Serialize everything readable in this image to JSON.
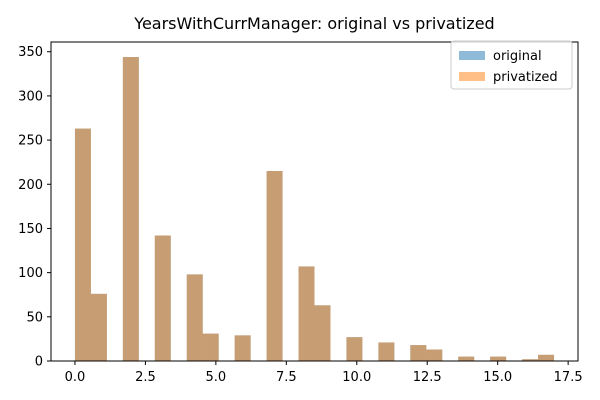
{
  "chart_data": {
    "type": "bar",
    "title": "YearsWithCurrManager: original vs privatized",
    "xlabel": "",
    "ylabel": "",
    "xlim": [
      -0.85,
      17.85
    ],
    "ylim": [
      0,
      361
    ],
    "xticks": [
      0.0,
      2.5,
      5.0,
      7.5,
      10.0,
      12.5,
      15.0,
      17.5
    ],
    "xtick_labels": [
      "0.0",
      "2.5",
      "5.0",
      "7.5",
      "10.0",
      "12.5",
      "15.0",
      "17.5"
    ],
    "yticks": [
      0,
      50,
      100,
      150,
      200,
      250,
      300,
      350
    ],
    "ytick_labels": [
      "0",
      "50",
      "100",
      "150",
      "200",
      "250",
      "300",
      "350"
    ],
    "bin_width": 0.567,
    "bin_starts": [
      0.0,
      0.567,
      1.133,
      1.7,
      2.267,
      2.833,
      3.4,
      3.967,
      4.533,
      5.1,
      5.667,
      6.233,
      6.8,
      7.367,
      7.933,
      8.5,
      9.067,
      9.633,
      10.2,
      10.767,
      11.333,
      11.9,
      12.467,
      13.033,
      13.6,
      14.167,
      14.733,
      15.3,
      15.867,
      16.433
    ],
    "series": [
      {
        "name": "original",
        "color": "#1f77b4",
        "opacity": 0.5,
        "values": [
          263,
          76,
          0,
          344,
          0,
          142,
          0,
          98,
          31,
          0,
          29,
          0,
          215,
          0,
          107,
          63,
          0,
          27,
          0,
          21,
          0,
          18,
          13,
          0,
          5,
          0,
          5,
          0,
          2,
          7
        ]
      },
      {
        "name": "privatized",
        "color": "#ff7f0e",
        "opacity": 0.5,
        "values": [
          263,
          76,
          0,
          344,
          0,
          142,
          0,
          98,
          31,
          0,
          29,
          0,
          215,
          0,
          107,
          63,
          0,
          27,
          0,
          21,
          0,
          18,
          13,
          0,
          5,
          0,
          5,
          0,
          2,
          7
        ]
      }
    ],
    "legend": {
      "placement": "top-right"
    },
    "grid": false
  }
}
